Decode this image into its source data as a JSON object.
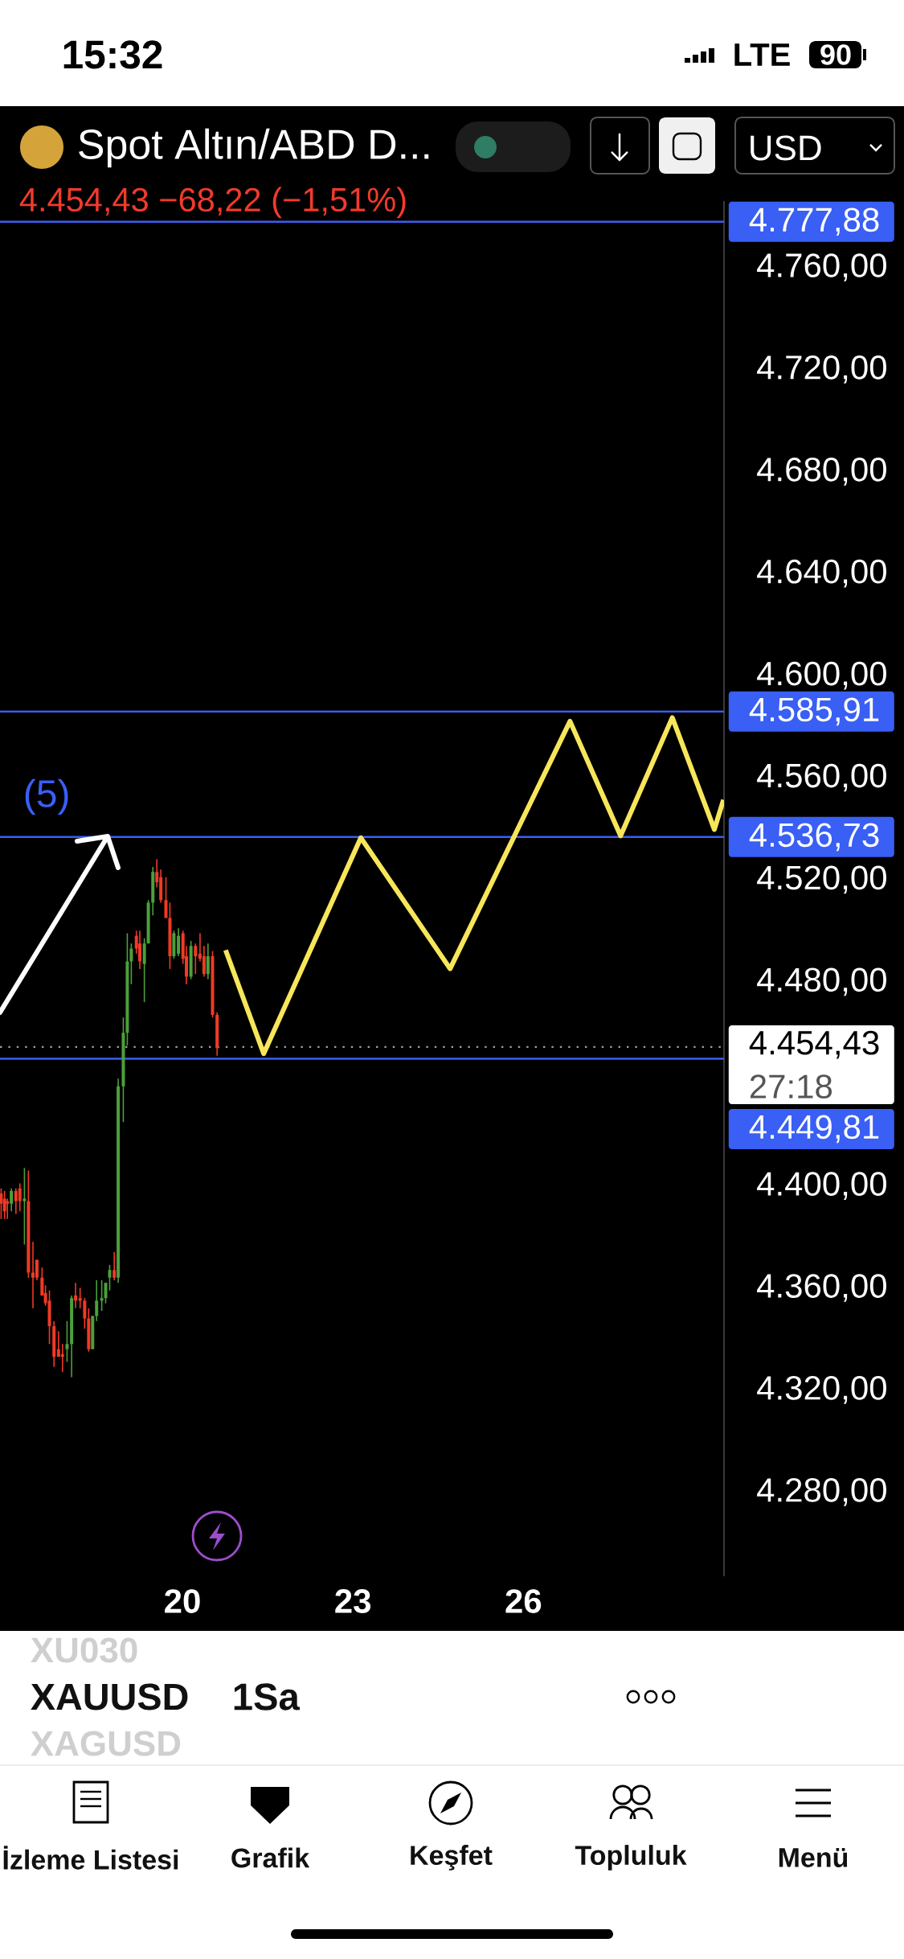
{
  "chart_data": {
    "type": "candlestick",
    "title": "Spot Altın/ABD D...",
    "subtitle": "4.454,43 −68,22 (−1,51%)",
    "xlim": [
      16.79,
      29.53
    ],
    "ylim": [
      4247,
      4786
    ],
    "xticks": [
      20,
      23,
      26
    ],
    "yticks": [
      {
        "value": 4280,
        "label": "4.280,00"
      },
      {
        "value": 4320,
        "label": "4.320,00"
      },
      {
        "value": 4360,
        "label": "4.360,00"
      },
      {
        "value": 4400,
        "label": "4.400,00"
      },
      {
        "value": 4480,
        "label": "4.480,00"
      },
      {
        "value": 4520,
        "label": "4.520,00"
      },
      {
        "value": 4560,
        "label": "4.560,00"
      },
      {
        "value": 4600,
        "label": "4.600,00"
      },
      {
        "value": 4640,
        "label": "4.640,00"
      },
      {
        "value": 4680,
        "label": "4.680,00"
      },
      {
        "value": 4720,
        "label": "4.720,00"
      },
      {
        "value": 4760,
        "label": "4.760,00"
      }
    ],
    "series": [
      {
        "x": [
          16.81,
          16.87,
          16.92,
          16.99,
          17.07,
          17.14,
          17.22,
          17.29,
          17.37,
          17.44,
          17.53,
          17.59,
          17.66,
          17.74,
          17.82,
          17.89,
          17.97,
          18.05,
          18.12,
          18.2,
          18.28,
          18.35,
          18.42,
          18.49,
          18.58,
          18.65,
          18.72,
          18.8,
          18.87,
          18.96,
          19.03,
          19.1,
          19.19,
          19.25,
          19.33,
          19.4,
          19.48,
          19.55,
          19.62,
          19.71,
          19.78,
          19.85,
          19.93,
          20.01,
          20.07,
          20.15,
          20.23,
          20.31,
          20.38,
          20.45,
          20.53,
          20.61
        ],
        "ohlc": [
          [
            4397,
            4399,
            4387,
            4393
          ],
          [
            4395,
            4398,
            4387,
            4390
          ],
          [
            4394,
            4395,
            4387,
            4393
          ],
          [
            4393,
            4399,
            4390,
            4398
          ],
          [
            4398,
            4399,
            4389,
            4394
          ],
          [
            4399,
            4401,
            4390,
            4394
          ],
          [
            4394,
            4407,
            4377,
            4395
          ],
          [
            4394,
            4406,
            4364,
            4366
          ],
          [
            4366,
            4378,
            4352,
            4364
          ],
          [
            4371,
            4371,
            4363,
            4364
          ],
          [
            4364,
            4368,
            4357,
            4357
          ],
          [
            4358,
            4361,
            4353,
            4354
          ],
          [
            4355,
            4359,
            4338,
            4345
          ],
          [
            4345,
            4347,
            4329,
            4333
          ],
          [
            4336,
            4343,
            4333,
            4333
          ],
          [
            4334,
            4338,
            4327,
            4333
          ],
          [
            4336,
            4347,
            4331,
            4338
          ],
          [
            4338,
            4357,
            4325,
            4356
          ],
          [
            4357,
            4362,
            4352,
            4355
          ],
          [
            4356,
            4360,
            4352,
            4355
          ],
          [
            4355,
            4356,
            4344,
            4348
          ],
          [
            4348,
            4352,
            4335,
            4336
          ],
          [
            4336,
            4349,
            4336,
            4349
          ],
          [
            4349,
            4363,
            4347,
            4355
          ],
          [
            4355,
            4363,
            4351,
            4356
          ],
          [
            4356,
            4362,
            4354,
            4362
          ],
          [
            4364,
            4369,
            4359,
            4367
          ],
          [
            4367,
            4374,
            4363,
            4364
          ],
          [
            4364,
            4442,
            4362,
            4439
          ],
          [
            4439,
            4466,
            4425,
            4460
          ],
          [
            4460,
            4499,
            4455,
            4488
          ],
          [
            4488,
            4495,
            4479,
            4493
          ],
          [
            4498,
            4500,
            4491,
            4493
          ],
          [
            4495,
            4500,
            4485,
            4488
          ],
          [
            4487,
            4497,
            4472,
            4495
          ],
          [
            4495,
            4512,
            4495,
            4511
          ],
          [
            4511,
            4525,
            4506,
            4523
          ],
          [
            4523,
            4528,
            4517,
            4519
          ],
          [
            4521,
            4524,
            4511,
            4512
          ],
          [
            4512,
            4521,
            4505,
            4505
          ],
          [
            4505,
            4511,
            4485,
            4490
          ],
          [
            4490,
            4500,
            4489,
            4499
          ],
          [
            4491,
            4501,
            4490,
            4498
          ],
          [
            4499,
            4500,
            4487,
            4489
          ],
          [
            4490,
            4494,
            4479,
            4482
          ],
          [
            4482,
            4496,
            4481,
            4494
          ],
          [
            4494,
            4495,
            4483,
            4490
          ],
          [
            4491,
            4499,
            4488,
            4489
          ],
          [
            4490,
            4494,
            4482,
            4483
          ],
          [
            4483,
            4495,
            4481,
            4490
          ],
          [
            4490,
            4492,
            4466,
            4467
          ],
          [
            4467,
            4468,
            4451,
            4454
          ]
        ],
        "colors": [
          "#f03a25",
          "#f03a25",
          "#f03a25",
          "#4ba03a",
          "#f03a25",
          "#f03a25",
          "#4ba03a",
          "#f03a25",
          "#f03a25",
          "#f03a25",
          "#f03a25",
          "#f03a25",
          "#f03a25",
          "#f03a25",
          "#f03a25",
          "#f03a25",
          "#4ba03a",
          "#4ba03a",
          "#f03a25",
          "#f03a25",
          "#f03a25",
          "#f03a25",
          "#4ba03a",
          "#4ba03a",
          "#4ba03a",
          "#4ba03a",
          "#4ba03a",
          "#f03a25",
          "#4ba03a",
          "#4ba03a",
          "#4ba03a",
          "#4ba03a",
          "#f03a25",
          "#f03a25",
          "#4ba03a",
          "#4ba03a",
          "#4ba03a",
          "#f03a25",
          "#f03a25",
          "#f03a25",
          "#f03a25",
          "#4ba03a",
          "#4ba03a",
          "#f03a25",
          "#f03a25",
          "#4ba03a",
          "#f03a25",
          "#f03a25",
          "#f03a25",
          "#4ba03a",
          "#f03a25",
          "#f03a25"
        ]
      },
      {
        "type": "line",
        "color": "#f7e65a",
        "x": [
          20.76,
          21.43,
          23.14,
          24.71,
          26.82,
          27.71,
          28.62,
          29.36,
          29.52
        ],
        "values": [
          4492.4,
          4451.8,
          4536.4,
          4485.1,
          4582.1,
          4537.2,
          4583.5,
          4539.7,
          4551.3
        ]
      }
    ],
    "ref_lines": [
      {
        "axis": "y",
        "value": 4777.88,
        "label": "4.777,88",
        "color": "#3a5ff5"
      },
      {
        "axis": "y",
        "value": 4585.91,
        "label": "4.585,91",
        "color": "#3a5ff5"
      },
      {
        "axis": "y",
        "value": 4536.73,
        "label": "4.536,73",
        "color": "#3a5ff5"
      },
      {
        "axis": "y",
        "value": 4449.81,
        "label": "4.449,81",
        "color": "#3a5ff5"
      },
      {
        "axis": "y",
        "value": 4454.43,
        "label": "4.454,43",
        "color": "#9e9e9e",
        "line_style": "dotted"
      }
    ],
    "annotations": [
      "(5)",
      "27:18",
      "15:32",
      "LTE",
      "90",
      "USD",
      "XU030",
      "XAUUSD",
      "XAGUSD",
      "1Sa",
      "İzleme Listesi",
      "Grafik",
      "Keşfet",
      "Topluluk",
      "Menü"
    ]
  }
}
